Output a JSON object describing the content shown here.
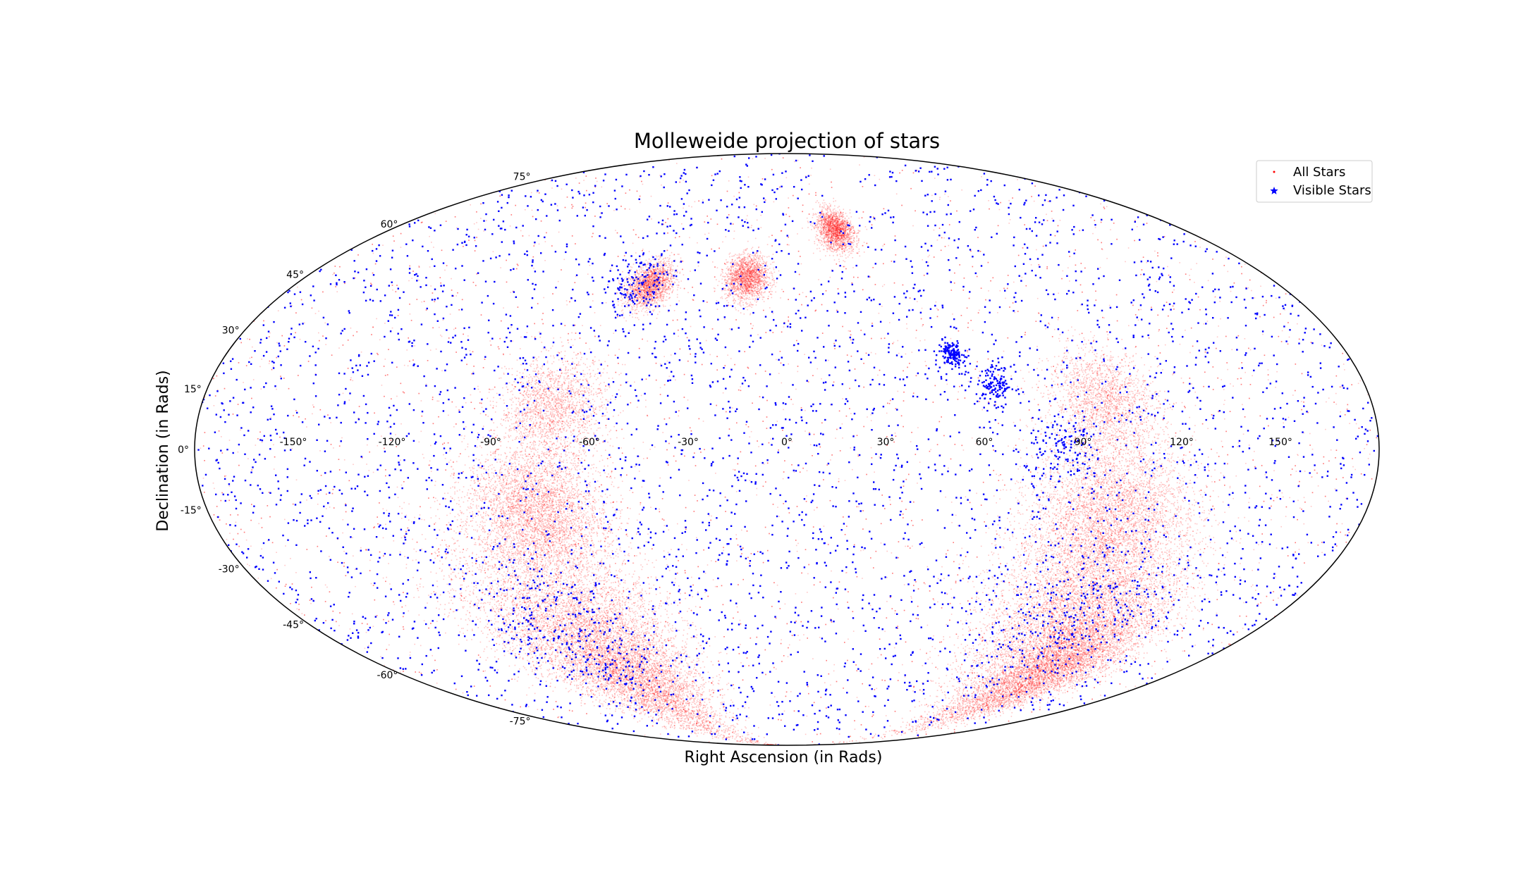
{
  "chart_data": {
    "type": "scatter",
    "projection": "mollweide",
    "title": "Molleweide projection of stars",
    "xlabel": "Right Ascension (in Rads)",
    "ylabel": "Declination (in Rads)",
    "xlim": [
      -180,
      180
    ],
    "ylim": [
      -90,
      90
    ],
    "grid": false,
    "legend_position": "top-right",
    "x_tick_labels": [
      "-150°",
      "-120°",
      "-90°",
      "-60°",
      "-30°",
      "0°",
      "30°",
      "60°",
      "90°",
      "120°",
      "150°"
    ],
    "x_tick_values": [
      -150,
      -120,
      -90,
      -60,
      -30,
      0,
      30,
      60,
      90,
      120,
      150
    ],
    "y_tick_labels": [
      "-75°",
      "-60°",
      "-45°",
      "-30°",
      "-15°",
      "0°",
      "15°",
      "30°",
      "45°",
      "60°",
      "75°"
    ],
    "y_tick_values": [
      -75,
      -60,
      -45,
      -30,
      -15,
      0,
      15,
      30,
      45,
      60,
      75
    ],
    "series": [
      {
        "name": "All Stars",
        "color": "#ff0000",
        "marker": "dot",
        "density_clusters": [
          {
            "ra": -82,
            "dec": -45,
            "spread": 18,
            "weight": 3
          },
          {
            "ra": -70,
            "dec": -60,
            "spread": 14,
            "weight": 2
          },
          {
            "ra": -78,
            "dec": -15,
            "spread": 10,
            "weight": 2
          },
          {
            "ra": -72,
            "dec": 10,
            "spread": 8,
            "weight": 1
          },
          {
            "ra": 105,
            "dec": -40,
            "spread": 16,
            "weight": 3
          },
          {
            "ra": 120,
            "dec": -58,
            "spread": 12,
            "weight": 3
          },
          {
            "ra": 100,
            "dec": -15,
            "spread": 12,
            "weight": 2
          },
          {
            "ra": 98,
            "dec": 12,
            "spread": 8,
            "weight": 1
          },
          {
            "ra": -50,
            "dec": 42,
            "spread": 4,
            "weight": 1
          },
          {
            "ra": -15,
            "dec": 44,
            "spread": 4,
            "weight": 1
          },
          {
            "ra": 22,
            "dec": 58,
            "spread": 4,
            "weight": 1
          }
        ]
      },
      {
        "name": "Visible Stars",
        "color": "#0000ff",
        "marker": "star",
        "density_clusters": [
          {
            "ra": -85,
            "dec": -48,
            "spread": 14,
            "weight": 2
          },
          {
            "ra": 105,
            "dec": -42,
            "spread": 14,
            "weight": 2
          },
          {
            "ra": 85,
            "dec": 0,
            "spread": 6,
            "weight": 1
          },
          {
            "ra": 53,
            "dec": 24,
            "spread": 2,
            "weight": 1
          },
          {
            "ra": 65,
            "dec": 16,
            "spread": 3,
            "weight": 1
          },
          {
            "ra": -55,
            "dec": 42,
            "spread": 6,
            "weight": 1
          }
        ]
      }
    ]
  }
}
